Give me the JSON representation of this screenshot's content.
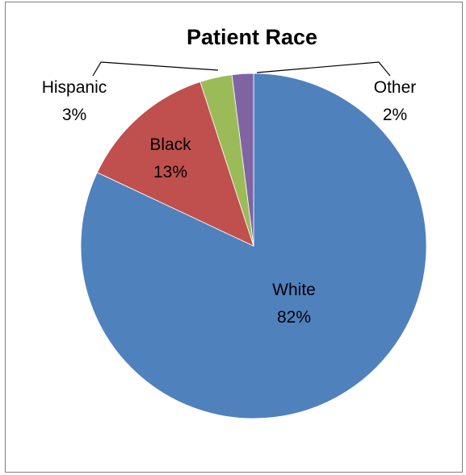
{
  "chart_data": {
    "type": "pie",
    "title": "Patient Race",
    "slices": [
      {
        "label": "White",
        "pct_text": "82%",
        "value": 82,
        "color": "#4f81bd"
      },
      {
        "label": "Black",
        "pct_text": "13%",
        "value": 13,
        "color": "#c0504d"
      },
      {
        "label": "Hispanic",
        "pct_text": "3%",
        "value": 3,
        "color": "#9bbb59"
      },
      {
        "label": "Other",
        "pct_text": "2%",
        "value": 2,
        "color": "#8064a2"
      }
    ],
    "legend": "none",
    "data_labels": "category and percentage"
  }
}
